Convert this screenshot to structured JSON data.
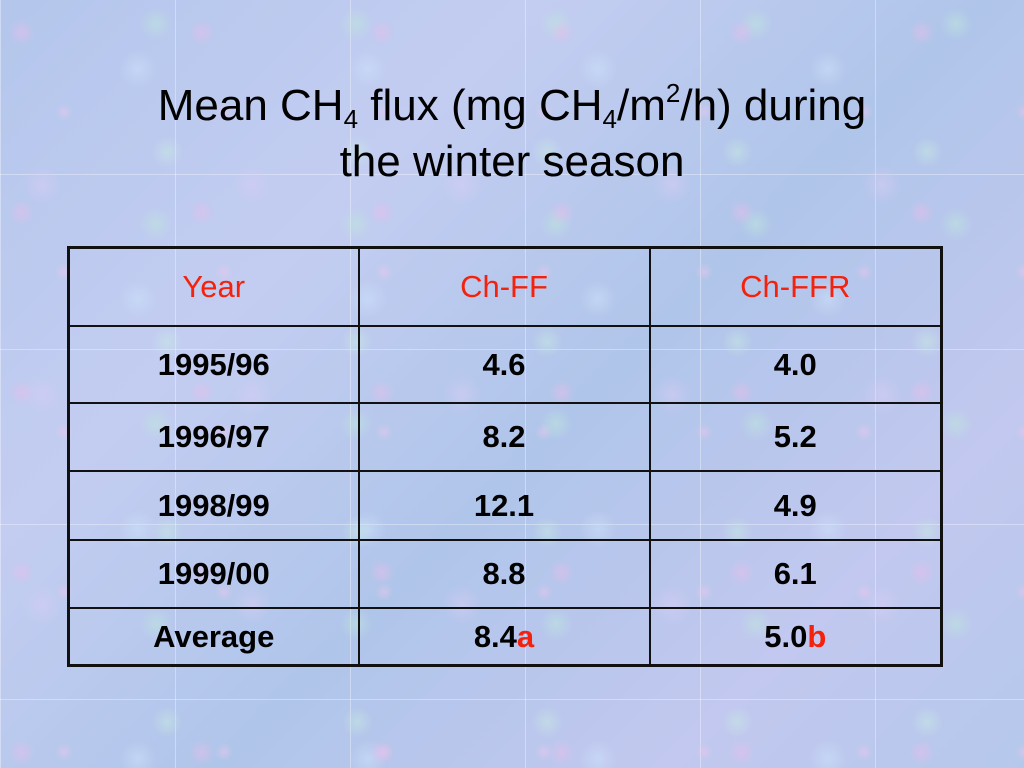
{
  "slide": {
    "title": {
      "part1": "Mean CH",
      "sub1": "4",
      "part2": " flux (mg CH",
      "sub2": "4",
      "part3": "/m",
      "sup1": "2",
      "part4": "/h) during",
      "line2": "the winter season"
    }
  },
  "table": {
    "headers": [
      "Year",
      "Ch-FF",
      "Ch-FFR"
    ],
    "rows": [
      [
        "1995/96",
        "4.6",
        "4.0"
      ],
      [
        "1996/97",
        "8.2",
        "5.2"
      ],
      [
        "1998/99",
        "12.1",
        "4.9"
      ],
      [
        "1999/00",
        "8.8",
        "6.1"
      ]
    ],
    "average": {
      "label": "Average",
      "ff_value": "8.4",
      "ff_letter": "a",
      "ffr_value": "5.0",
      "ffr_letter": "b"
    }
  },
  "colors": {
    "header_text": "#f4220c",
    "letter_text": "#f4220c",
    "background": "#b7c9ee"
  }
}
